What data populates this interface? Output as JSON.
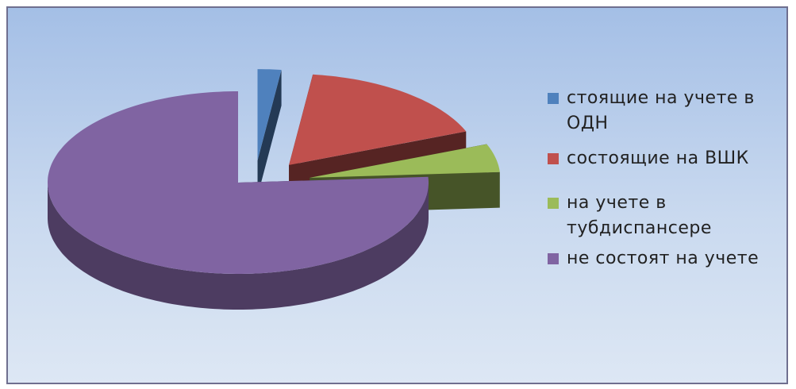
{
  "chart_data": {
    "type": "pie3d",
    "series": [
      {
        "name": "стоящие на учете в ОДН",
        "color": "#4f81bd",
        "value": 2
      },
      {
        "name": "состоящие на ВШК",
        "color": "#c0504d",
        "value": 17
      },
      {
        "name": "на учете в тубдиспансере",
        "color": "#9bbb59",
        "value": 5
      },
      {
        "name": "не состоят на учете",
        "color": "#8064a2",
        "value": 76
      }
    ],
    "legend": "right"
  }
}
